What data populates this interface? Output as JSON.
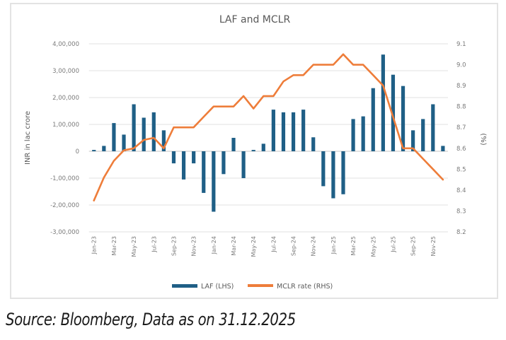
{
  "chart_data": {
    "type": "bar+line",
    "title": "LAF and MCLR",
    "xlabel": "",
    "ylabel": "INR in lac crore",
    "ylabel_right": "(%)",
    "categories": [
      "Jan-23",
      "Feb-23",
      "Mar-23",
      "Apr-23",
      "May-23",
      "Jun-23",
      "Jul-23",
      "Aug-23",
      "Sep-23",
      "Oct-23",
      "Nov-23",
      "Dec-23",
      "Jan-24",
      "Feb-24",
      "Mar-24",
      "Apr-24",
      "May-24",
      "Jun-24",
      "Jul-24",
      "Aug-24",
      "Sep-24",
      "Oct-24",
      "Nov-24",
      "Dec-24",
      "Jan-25",
      "Feb-25",
      "Mar-25",
      "Apr-25",
      "May-25",
      "Jun-25",
      "Jul-25",
      "Aug-25",
      "Sep-25",
      "Oct-25",
      "Nov-25",
      "Dec-25"
    ],
    "x_tick_labels": [
      "Jan-23",
      "Mar-23",
      "May-23",
      "Jul-23",
      "Sep-23",
      "Nov-23",
      "Jan-24",
      "Mar-24",
      "May-24",
      "Jul-24",
      "Sep-24",
      "Nov-24",
      "Jan-25",
      "Mar-25",
      "May-25",
      "Jul-25",
      "Sep-25",
      "Nov-25"
    ],
    "series": [
      {
        "name": "LAF (LHS)",
        "type": "bar",
        "axis": "left",
        "color": "#1f5f86",
        "values": [
          5000,
          20000,
          105000,
          62000,
          175000,
          125000,
          145000,
          78000,
          -45000,
          -105000,
          -45000,
          -155000,
          -225000,
          -85000,
          50000,
          -100000,
          5000,
          28000,
          155000,
          145000,
          145000,
          155000,
          52000,
          -130000,
          -175000,
          -160000,
          120000,
          130000,
          235000,
          360000,
          285000,
          243000,
          78000,
          120000,
          175000,
          20000
        ]
      },
      {
        "name": "MCLR rate (RHS)",
        "type": "line",
        "axis": "right",
        "color": "#ee7d3a",
        "values": [
          8.35,
          8.46,
          8.54,
          8.59,
          8.6,
          8.64,
          8.65,
          8.6,
          8.7,
          8.7,
          8.7,
          8.75,
          8.8,
          8.8,
          8.8,
          8.85,
          8.79,
          8.85,
          8.85,
          8.92,
          8.95,
          8.95,
          9.0,
          9.0,
          9.0,
          9.05,
          9.0,
          9.0,
          8.95,
          8.9,
          8.75,
          8.6,
          8.6,
          8.55,
          8.5,
          8.45
        ]
      }
    ],
    "y_left": {
      "range": [
        -300000,
        400000
      ],
      "ticks": [
        400000,
        300000,
        200000,
        100000,
        0,
        -100000,
        -200000,
        -300000
      ],
      "tick_labels": [
        "4,00,000",
        "3,00,000",
        "2,00,000",
        "1,00,000",
        "0",
        "-1,00,000",
        "-2,00,000",
        "-3,00,000"
      ]
    },
    "y_right": {
      "range": [
        8.2,
        9.1
      ],
      "ticks": [
        9.1,
        9.0,
        8.9,
        8.8,
        8.7,
        8.6,
        8.5,
        8.4,
        8.3,
        8.2
      ],
      "tick_labels": [
        "9.1",
        "9.0",
        "8.9",
        "8.8",
        "8.7",
        "8.6",
        "8.5",
        "8.4",
        "8.3",
        "8.2"
      ]
    },
    "grid": true,
    "legend": {
      "position": "bottom",
      "entries": [
        "LAF (LHS)",
        "MCLR rate (RHS)"
      ]
    }
  },
  "source_note": "Source: Bloomberg, Data as on 31.12.2025"
}
